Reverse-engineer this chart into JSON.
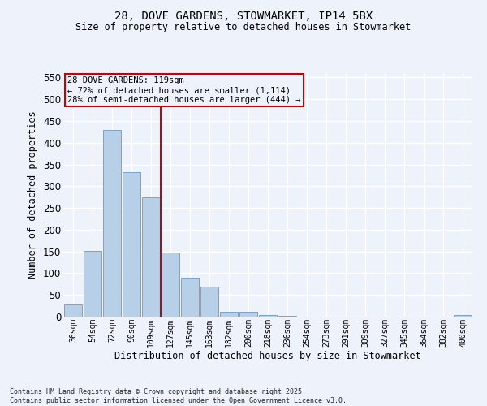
{
  "title1": "28, DOVE GARDENS, STOWMARKET, IP14 5BX",
  "title2": "Size of property relative to detached houses in Stowmarket",
  "xlabel": "Distribution of detached houses by size in Stowmarket",
  "ylabel": "Number of detached properties",
  "categories": [
    "36sqm",
    "54sqm",
    "72sqm",
    "90sqm",
    "109sqm",
    "127sqm",
    "145sqm",
    "163sqm",
    "182sqm",
    "200sqm",
    "218sqm",
    "236sqm",
    "254sqm",
    "273sqm",
    "291sqm",
    "309sqm",
    "327sqm",
    "345sqm",
    "364sqm",
    "382sqm",
    "400sqm"
  ],
  "values": [
    28,
    152,
    430,
    333,
    275,
    147,
    90,
    70,
    12,
    11,
    4,
    1,
    0,
    0,
    0,
    0,
    0,
    0,
    0,
    0,
    4
  ],
  "bar_color": "#b8cfe8",
  "bar_edge_color": "#6699cc",
  "vline_color": "#cc0000",
  "annotation_title": "28 DOVE GARDENS: 119sqm",
  "annotation_line1": "← 72% of detached houses are smaller (1,114)",
  "annotation_line2": "28% of semi-detached houses are larger (444) →",
  "annotation_box_color": "#cc0000",
  "ylim": [
    0,
    560
  ],
  "yticks": [
    0,
    50,
    100,
    150,
    200,
    250,
    300,
    350,
    400,
    450,
    500,
    550
  ],
  "footer1": "Contains HM Land Registry data © Crown copyright and database right 2025.",
  "footer2": "Contains public sector information licensed under the Open Government Licence v3.0.",
  "background_color": "#eef2fb",
  "grid_color": "#ffffff"
}
